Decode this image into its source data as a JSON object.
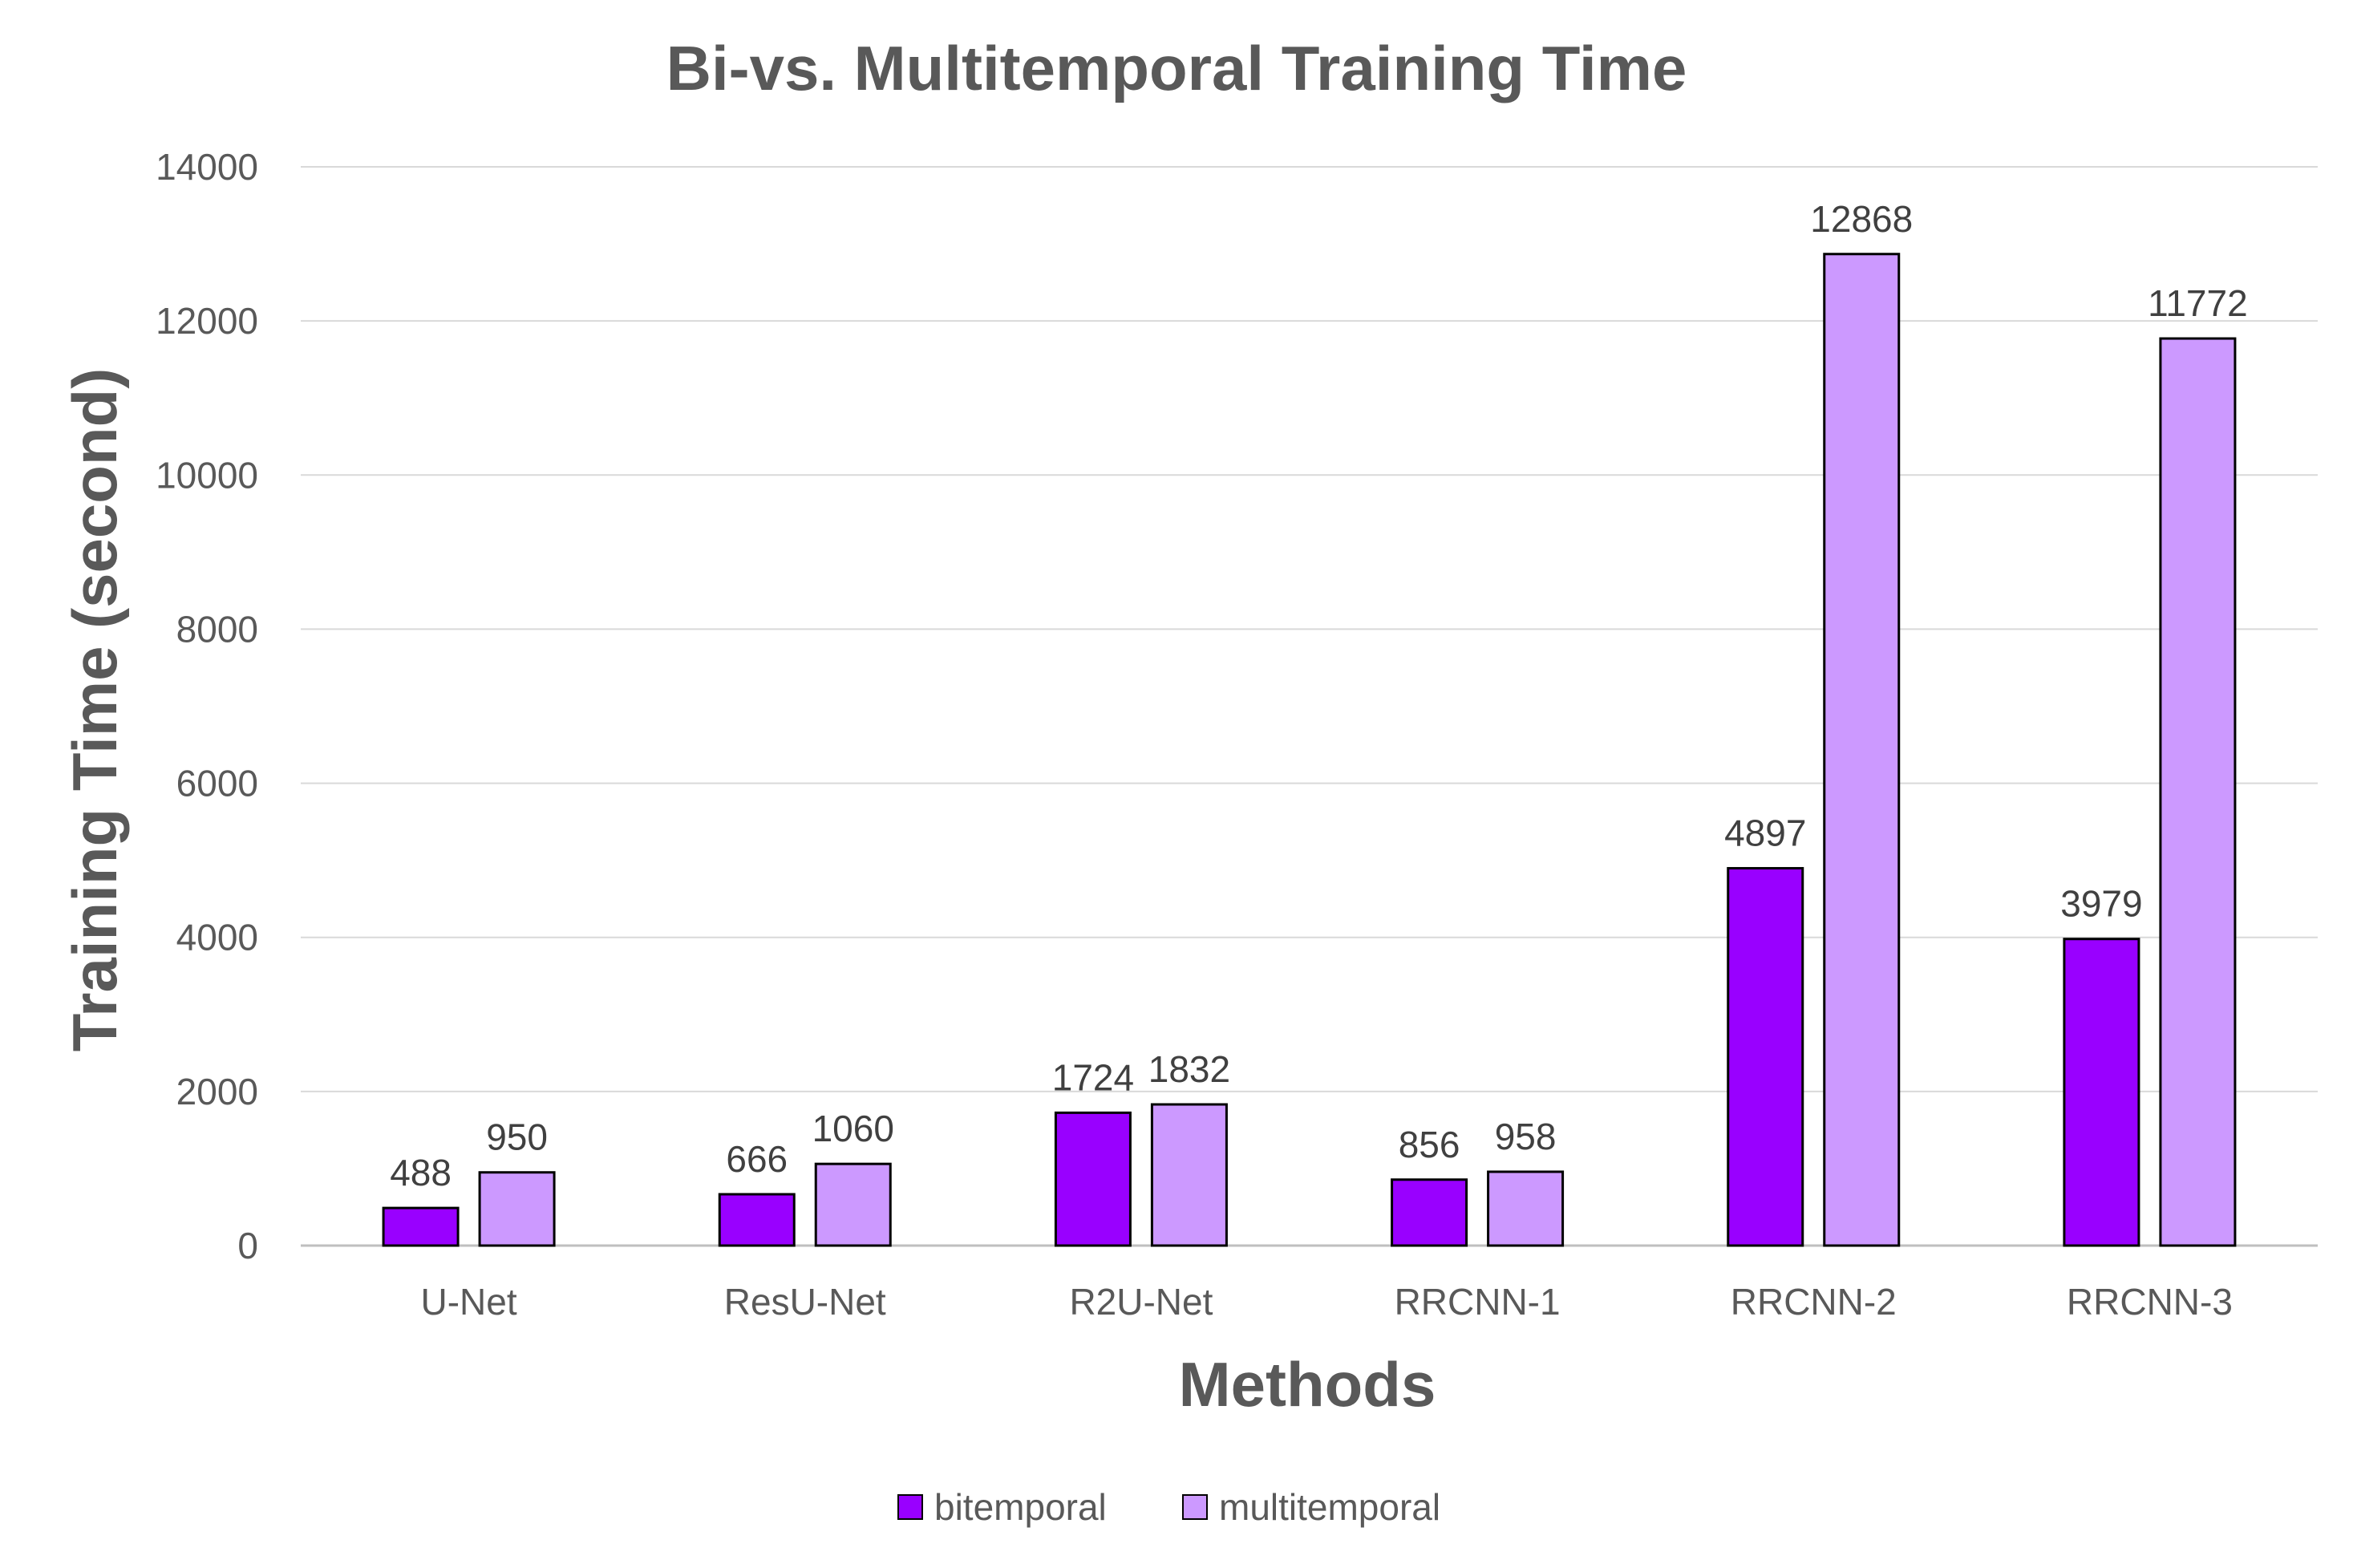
{
  "chart_data": {
    "type": "bar",
    "title": "Bi-vs. Multitemporal Training Time",
    "xlabel": "Methods",
    "ylabel": "Training Time (second)",
    "categories": [
      "U-Net",
      "ResU-Net",
      "R2U-Net",
      "RRCNN-1",
      "RRCNN-2",
      "RRCNN-3"
    ],
    "series": [
      {
        "name": "bitemporal",
        "color": "#9900FF",
        "values": [
          488,
          666,
          1724,
          856,
          4897,
          3979
        ]
      },
      {
        "name": "multitemporal",
        "color": "#CC99FF",
        "values": [
          950,
          1060,
          1832,
          958,
          12868,
          11772
        ]
      }
    ],
    "ylim": [
      0,
      14000
    ],
    "yticks": [
      0,
      2000,
      4000,
      6000,
      8000,
      10000,
      12000,
      14000
    ],
    "grid": true,
    "legend": "bottom",
    "data_labels": true
  }
}
